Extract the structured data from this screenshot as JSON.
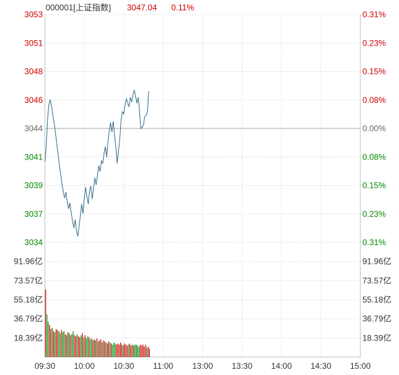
{
  "header": {
    "code_name": "000001[上证指数]",
    "price": "3047.04",
    "change_pct": "0.11%"
  },
  "colors": {
    "up": "#cc0000",
    "down": "#008800",
    "neutral": "#666666",
    "line": "#3a6f8f",
    "grid": "#d0d0d0",
    "border": "#bfbfbf"
  },
  "chart_data": {
    "type": "line",
    "title": "",
    "price_axis": {
      "left_labels": [
        "3053",
        "3051",
        "3048",
        "3046",
        "3044",
        "3041",
        "3039",
        "3037",
        "3034"
      ],
      "right_labels": [
        "0.31%",
        "0.23%",
        "0.15%",
        "0.08%",
        "0.00%",
        "0.08%",
        "0.15%",
        "0.23%",
        "0.31%"
      ],
      "right_colors": [
        "up",
        "up",
        "up",
        "up",
        "neutral",
        "down",
        "down",
        "down",
        "down"
      ],
      "left_colors": [
        "up",
        "up",
        "up",
        "up",
        "neutral",
        "down",
        "down",
        "down",
        "down"
      ],
      "ylim": [
        3034.4,
        3053.4
      ],
      "prev_close": 3043.9
    },
    "volume_axis": {
      "labels": [
        "91.96亿",
        "73.57亿",
        "55.18亿",
        "36.79亿",
        "18.39亿"
      ],
      "ylim": [
        0,
        110.35
      ]
    },
    "time_axis": {
      "labels": [
        "09:30",
        "10:00",
        "10:30",
        "11:00",
        "13:00",
        "13:30",
        "14:00",
        "14:30",
        "15:00"
      ],
      "total_minutes": 240
    },
    "price_series": [
      3041.1,
      3042.3,
      3044.6,
      3045.8,
      3046.3,
      3045.8,
      3045.1,
      3044.4,
      3043.6,
      3042.7,
      3041.8,
      3040.9,
      3040.1,
      3039.3,
      3038.6,
      3038.1,
      3038.6,
      3037.8,
      3037.2,
      3037.7,
      3036.9,
      3036.2,
      3035.6,
      3036.3,
      3035.4,
      3034.9,
      3035.7,
      3036.6,
      3037.6,
      3036.8,
      3038.1,
      3039.0,
      3038.2,
      3037.6,
      3038.7,
      3039.1,
      3038.0,
      3038.9,
      3039.8,
      3039.2,
      3040.0,
      3040.8,
      3040.3,
      3041.2,
      3041.0,
      3041.8,
      3042.4,
      3041.5,
      3042.8,
      3043.7,
      3044.4,
      3043.6,
      3044.5,
      3043.3,
      3042.4,
      3041.0,
      3042.0,
      3043.0,
      3044.6,
      3045.3,
      3045.1,
      3045.9,
      3046.4,
      3046.0,
      3045.7,
      3046.5,
      3046.1,
      3046.7,
      3047.1,
      3046.6,
      3046.0,
      3046.5,
      3045.4,
      3043.9,
      3044.0,
      3044.2,
      3044.9,
      3045.0,
      3045.3,
      3047.0
    ],
    "volume_series": [
      65,
      41,
      34,
      31,
      27,
      28,
      25,
      24,
      27,
      26,
      25,
      23,
      26,
      24,
      25,
      22,
      21,
      24,
      23,
      21,
      22,
      25,
      21,
      20,
      22,
      20,
      19,
      21,
      23,
      19,
      21,
      18,
      20,
      19,
      17,
      18,
      16,
      17,
      16,
      18,
      15,
      16,
      17,
      14,
      16,
      15,
      14,
      13,
      15,
      14,
      13,
      12,
      14,
      13,
      12,
      13,
      12,
      14,
      12,
      11,
      13,
      12,
      11,
      12,
      13,
      11,
      12,
      11,
      12,
      12,
      11,
      10,
      12,
      11,
      12,
      10,
      12,
      9,
      10,
      8
    ],
    "volume_colors": [
      "up",
      "down",
      "down",
      "up",
      "up",
      "down",
      "up",
      "down",
      "up",
      "up",
      "down",
      "down",
      "up",
      "down",
      "down",
      "up",
      "down",
      "up",
      "down",
      "up",
      "down",
      "down",
      "up",
      "up",
      "down",
      "up",
      "up",
      "down",
      "up",
      "down",
      "up",
      "down",
      "down",
      "up",
      "down",
      "down",
      "up",
      "up",
      "down",
      "up",
      "down",
      "up",
      "up",
      "down",
      "up",
      "up",
      "down",
      "up",
      "up",
      "down",
      "up",
      "down",
      "down",
      "down",
      "up",
      "up",
      "up",
      "up",
      "up",
      "down",
      "up",
      "up",
      "up",
      "down",
      "up",
      "up",
      "down",
      "up",
      "down",
      "down",
      "down",
      "down",
      "up",
      "up",
      "up",
      "up",
      "up",
      "down",
      "up",
      "up"
    ]
  }
}
